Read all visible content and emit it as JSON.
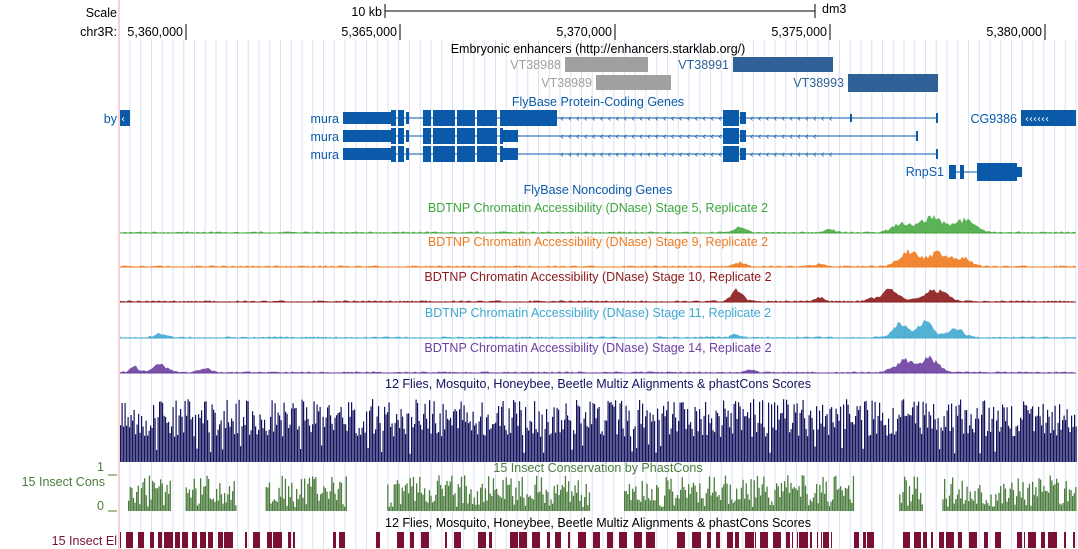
{
  "header": {
    "scale_label": "Scale",
    "chrom_label": "chr3R:",
    "scale_bar_label": "10 kb",
    "assembly": "dm3",
    "positions": [
      "5,360,000",
      "5,365,000",
      "5,370,000",
      "5,375,000",
      "5,380,000"
    ]
  },
  "tracks": {
    "enhancers": {
      "title": "Embryonic enhancers (http://enhancers.starklab.org/)",
      "items": [
        {
          "name": "VT38988",
          "color": "#a0a0a0"
        },
        {
          "name": "VT38989",
          "color": "#a0a0a0"
        },
        {
          "name": "VT38991",
          "color": "#2f6096"
        },
        {
          "name": "VT38993",
          "color": "#2f6096"
        }
      ]
    },
    "coding_genes": {
      "title": "FlyBase Protein-Coding Genes",
      "color": "#0a5aa9",
      "genes": [
        "by",
        "mura",
        "mura",
        "mura",
        "CG9386",
        "RnpS1"
      ]
    },
    "noncoding_genes": {
      "title": "FlyBase Noncoding Genes"
    },
    "dnase": [
      {
        "title": "BDTNP Chromatin Accessibility (DNase) Stage 5, Replicate 2",
        "color": "#3fa63a"
      },
      {
        "title": "BDTNP Chromatin Accessibility (DNase) Stage 9, Replicate 2",
        "color": "#f07a1e"
      },
      {
        "title": "BDTNP Chromatin Accessibility (DNase) Stage 10, Replicate 2",
        "color": "#8b1a1a"
      },
      {
        "title": "BDTNP Chromatin Accessibility (DNase) Stage 11, Replicate 2",
        "color": "#3fa9cf"
      },
      {
        "title": "BDTNP Chromatin Accessibility (DNase) Stage 14, Replicate 2",
        "color": "#6b3fa0"
      }
    ],
    "multiz": {
      "title": "12 Flies, Mosquito, Honeybee, Beetle Multiz Alignments & phastCons Scores",
      "color": "#13135e"
    },
    "phastcons": {
      "title": "15 Insect Conservation by PhastCons",
      "side_label": "15 Insect Cons",
      "axis_max": "1",
      "axis_min": "0",
      "color": "#4a7d3c"
    },
    "elements": {
      "title": "12 Flies, Mosquito, Honeybee, Beetle Multiz Alignments & phastCons Scores",
      "side_label": "15 Insect El",
      "color": "#7b1035"
    }
  }
}
